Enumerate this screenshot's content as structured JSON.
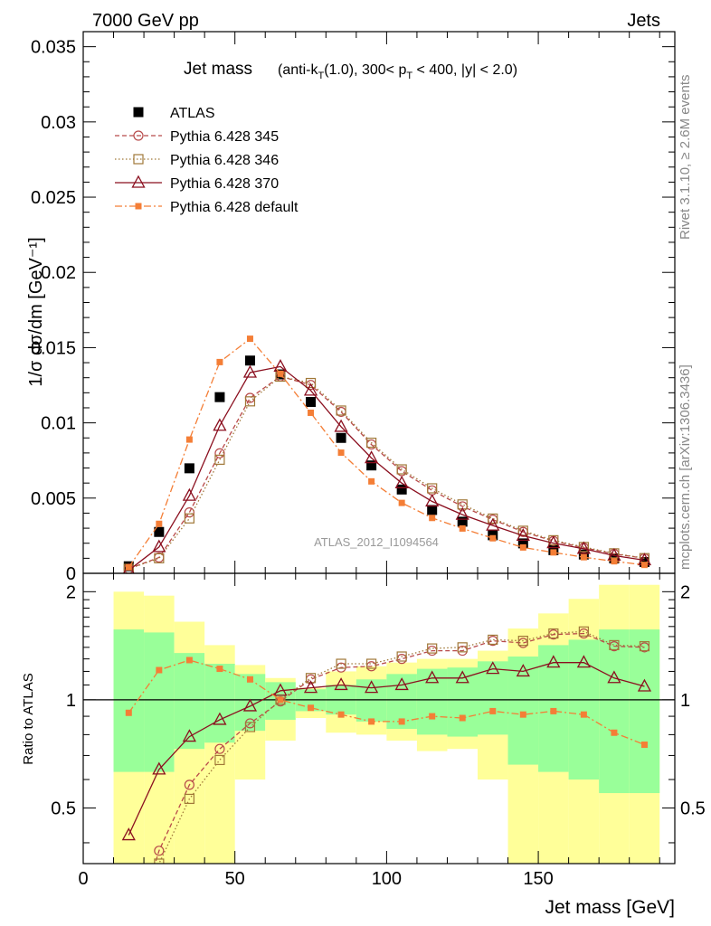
{
  "header": {
    "left": "7000 GeV pp",
    "right": "Jets"
  },
  "side_labels": {
    "rivet": "Rivet 3.1.10, ≥ 2.6M events",
    "mcplots": "mcplots.cern.ch [arXiv:1306.3436]"
  },
  "title": {
    "main": "Jet mass",
    "sub": "(anti-k_T(1.0), 300< p_T < 400, |y| < 2.0)"
  },
  "watermark": "ATLAS_2012_I1094564",
  "colors": {
    "data": "#000000",
    "p345": "#b84a4a",
    "p346": "#a07838",
    "p370": "#8b0f1f",
    "pdef": "#f47e36",
    "band_yellow": "#ffff99",
    "band_green": "#99ff99"
  },
  "chart_data": [
    {
      "type": "scatter",
      "ylabel": "1/σ dσ/dm [GeV⁻¹]",
      "xlim": [
        0,
        195
      ],
      "ylim": [
        0,
        0.036
      ],
      "yticks": [
        0,
        0.005,
        0.01,
        0.015,
        0.02,
        0.025,
        0.03,
        0.035
      ],
      "ytick_labels": [
        "0",
        "0.005",
        "0.01",
        "0.015",
        "0.02",
        "0.025",
        "0.03",
        "0.035"
      ],
      "x": [
        15,
        25,
        35,
        45,
        55,
        65,
        75,
        85,
        95,
        105,
        115,
        125,
        135,
        145,
        155,
        165,
        175,
        185
      ],
      "series": [
        {
          "name": "ATLAS",
          "marker": "square-filled",
          "line": "none",
          "values": [
            0.00047,
            0.00275,
            0.00698,
            0.01171,
            0.01414,
            0.01322,
            0.01139,
            0.009,
            0.00717,
            0.00557,
            0.00421,
            0.00343,
            0.00253,
            0.00199,
            0.00154,
            0.00125,
            0.00099,
            0.00075
          ]
        },
        {
          "name": "Pythia 6.428 345",
          "marker": "circle-open",
          "line": "dashed",
          "values": [
            0.0003,
            0.00105,
            0.00405,
            0.00798,
            0.01166,
            0.01309,
            0.01252,
            0.01073,
            0.00856,
            0.00679,
            0.00551,
            0.00445,
            0.00357,
            0.00275,
            0.00215,
            0.0017,
            0.00129,
            0.001
          ]
        },
        {
          "name": "Pythia 6.428 346",
          "marker": "square-open",
          "line": "dotted",
          "values": [
            0.0003,
            0.001,
            0.00365,
            0.00755,
            0.01143,
            0.01307,
            0.01265,
            0.01082,
            0.00868,
            0.00691,
            0.00565,
            0.00458,
            0.00364,
            0.00283,
            0.0022,
            0.00175,
            0.00133,
            0.00101
          ]
        },
        {
          "name": "Pythia 6.428 370",
          "marker": "triangle-open",
          "line": "solid",
          "values": [
            0.0002,
            0.00175,
            0.00516,
            0.00981,
            0.01334,
            0.01374,
            0.01215,
            0.00974,
            0.00766,
            0.00599,
            0.00478,
            0.0039,
            0.00318,
            0.0025,
            0.00201,
            0.00163,
            0.00118,
            0.00087
          ]
        },
        {
          "name": "Pythia 6.428 default",
          "marker": "square-small-filled",
          "line": "dashdot",
          "values": [
            0.0004,
            0.00329,
            0.00889,
            0.01404,
            0.01559,
            0.01326,
            0.01067,
            0.00802,
            0.00611,
            0.00468,
            0.00368,
            0.00298,
            0.00233,
            0.00172,
            0.00139,
            0.00107,
            0.0008,
            0.00056
          ]
        }
      ]
    },
    {
      "type": "line",
      "xlabel": "Jet mass [GeV]",
      "ylabel": "Ratio to ATLAS",
      "xlim": [
        0,
        195
      ],
      "ylim": [
        0.35,
        2.25
      ],
      "xticks": [
        0,
        50,
        100,
        150
      ],
      "xtick_labels": [
        "0",
        "50",
        "100",
        "150"
      ],
      "yticks": [
        0.5,
        1,
        2
      ],
      "ytick_labels": [
        "0.5",
        "1",
        "2"
      ],
      "reference_line": 1,
      "x": [
        15,
        25,
        35,
        45,
        55,
        65,
        75,
        85,
        95,
        105,
        115,
        125,
        135,
        145,
        155,
        165,
        175,
        185
      ],
      "bins": [
        [
          10,
          20
        ],
        [
          20,
          30
        ],
        [
          30,
          40
        ],
        [
          40,
          50
        ],
        [
          50,
          60
        ],
        [
          60,
          70
        ],
        [
          70,
          80
        ],
        [
          80,
          90
        ],
        [
          90,
          100
        ],
        [
          100,
          110
        ],
        [
          110,
          120
        ],
        [
          120,
          130
        ],
        [
          130,
          140
        ],
        [
          140,
          150
        ],
        [
          150,
          160
        ],
        [
          160,
          170
        ],
        [
          170,
          180
        ],
        [
          180,
          190
        ]
      ],
      "band_yellow": {
        "low": [
          0.33,
          0.33,
          0.33,
          0.33,
          0.6,
          0.77,
          0.89,
          0.81,
          0.8,
          0.77,
          0.72,
          0.73,
          0.6,
          0.28,
          0.28,
          0.2,
          0.18,
          0.18
        ],
        "high": [
          2.0,
          1.95,
          1.65,
          1.42,
          1.25,
          1.15,
          1.08,
          1.2,
          1.24,
          1.27,
          1.3,
          1.3,
          1.37,
          1.58,
          1.74,
          1.91,
          2.09,
          2.09
        ]
      },
      "band_green": {
        "low": [
          0.63,
          0.63,
          0.73,
          0.76,
          0.82,
          0.88,
          0.93,
          0.91,
          0.87,
          0.83,
          0.8,
          0.79,
          0.8,
          0.66,
          0.63,
          0.6,
          0.55,
          0.55
        ],
        "high": [
          1.57,
          1.54,
          1.35,
          1.26,
          1.18,
          1.12,
          1.07,
          1.1,
          1.14,
          1.18,
          1.22,
          1.23,
          1.28,
          1.32,
          1.42,
          1.47,
          1.57,
          1.57
        ]
      },
      "series": [
        {
          "name": "Pythia 6.428 345",
          "marker": "circle-open",
          "line": "dashed",
          "values": [
            0.2,
            0.38,
            0.58,
            0.73,
            0.86,
            0.99,
            1.14,
            1.23,
            1.24,
            1.3,
            1.37,
            1.37,
            1.46,
            1.44,
            1.52,
            1.53,
            1.41,
            1.4
          ]
        },
        {
          "name": "Pythia 6.428 346",
          "marker": "square-open",
          "line": "dotted",
          "values": [
            0.2,
            0.35,
            0.53,
            0.68,
            0.84,
            1.0,
            1.15,
            1.26,
            1.26,
            1.32,
            1.39,
            1.4,
            1.47,
            1.46,
            1.53,
            1.55,
            1.42,
            1.41
          ]
        },
        {
          "name": "Pythia 6.428 370",
          "marker": "triangle-open",
          "line": "solid",
          "values": [
            0.42,
            0.64,
            0.79,
            0.88,
            0.96,
            1.06,
            1.08,
            1.1,
            1.08,
            1.1,
            1.15,
            1.15,
            1.22,
            1.2,
            1.27,
            1.27,
            1.15,
            1.09
          ]
        },
        {
          "name": "Pythia 6.428 default",
          "marker": "square-small-filled",
          "line": "dashdot",
          "values": [
            0.92,
            1.21,
            1.29,
            1.22,
            1.14,
            1.0,
            0.95,
            0.91,
            0.87,
            0.87,
            0.9,
            0.89,
            0.93,
            0.91,
            0.93,
            0.91,
            0.81,
            0.75
          ]
        }
      ]
    }
  ]
}
